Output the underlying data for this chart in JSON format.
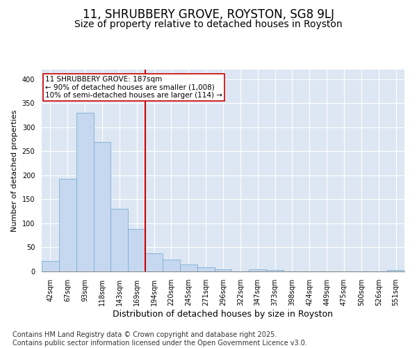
{
  "title": "11, SHRUBBERY GROVE, ROYSTON, SG8 9LJ",
  "subtitle": "Size of property relative to detached houses in Royston",
  "xlabel": "Distribution of detached houses by size in Royston",
  "ylabel": "Number of detached properties",
  "categories": [
    "42sqm",
    "67sqm",
    "93sqm",
    "118sqm",
    "143sqm",
    "169sqm",
    "194sqm",
    "220sqm",
    "245sqm",
    "271sqm",
    "296sqm",
    "322sqm",
    "347sqm",
    "373sqm",
    "398sqm",
    "424sqm",
    "449sqm",
    "475sqm",
    "500sqm",
    "526sqm",
    "551sqm"
  ],
  "values": [
    22,
    193,
    330,
    270,
    130,
    88,
    38,
    24,
    14,
    8,
    5,
    0,
    4,
    3,
    0,
    0,
    0,
    0,
    0,
    0,
    3
  ],
  "bar_color": "#c5d8ef",
  "bar_edge_color": "#7aadd4",
  "vline_x_index": 6,
  "vline_color": "#cc0000",
  "annotation_text": "11 SHRUBBERY GROVE: 187sqm\n← 90% of detached houses are smaller (1,008)\n10% of semi-detached houses are larger (114) →",
  "annotation_box_color": "#cc0000",
  "annotation_bg_color": "#ffffff",
  "ylim": [
    0,
    420
  ],
  "yticks": [
    0,
    50,
    100,
    150,
    200,
    250,
    300,
    350,
    400
  ],
  "plot_bg_color": "#dde7f3",
  "grid_color": "#ffffff",
  "footer": "Contains HM Land Registry data © Crown copyright and database right 2025.\nContains public sector information licensed under the Open Government Licence v3.0.",
  "title_fontsize": 12,
  "subtitle_fontsize": 10,
  "xlabel_fontsize": 9,
  "ylabel_fontsize": 8,
  "tick_fontsize": 7,
  "footer_fontsize": 7,
  "annotation_fontsize": 7.5
}
